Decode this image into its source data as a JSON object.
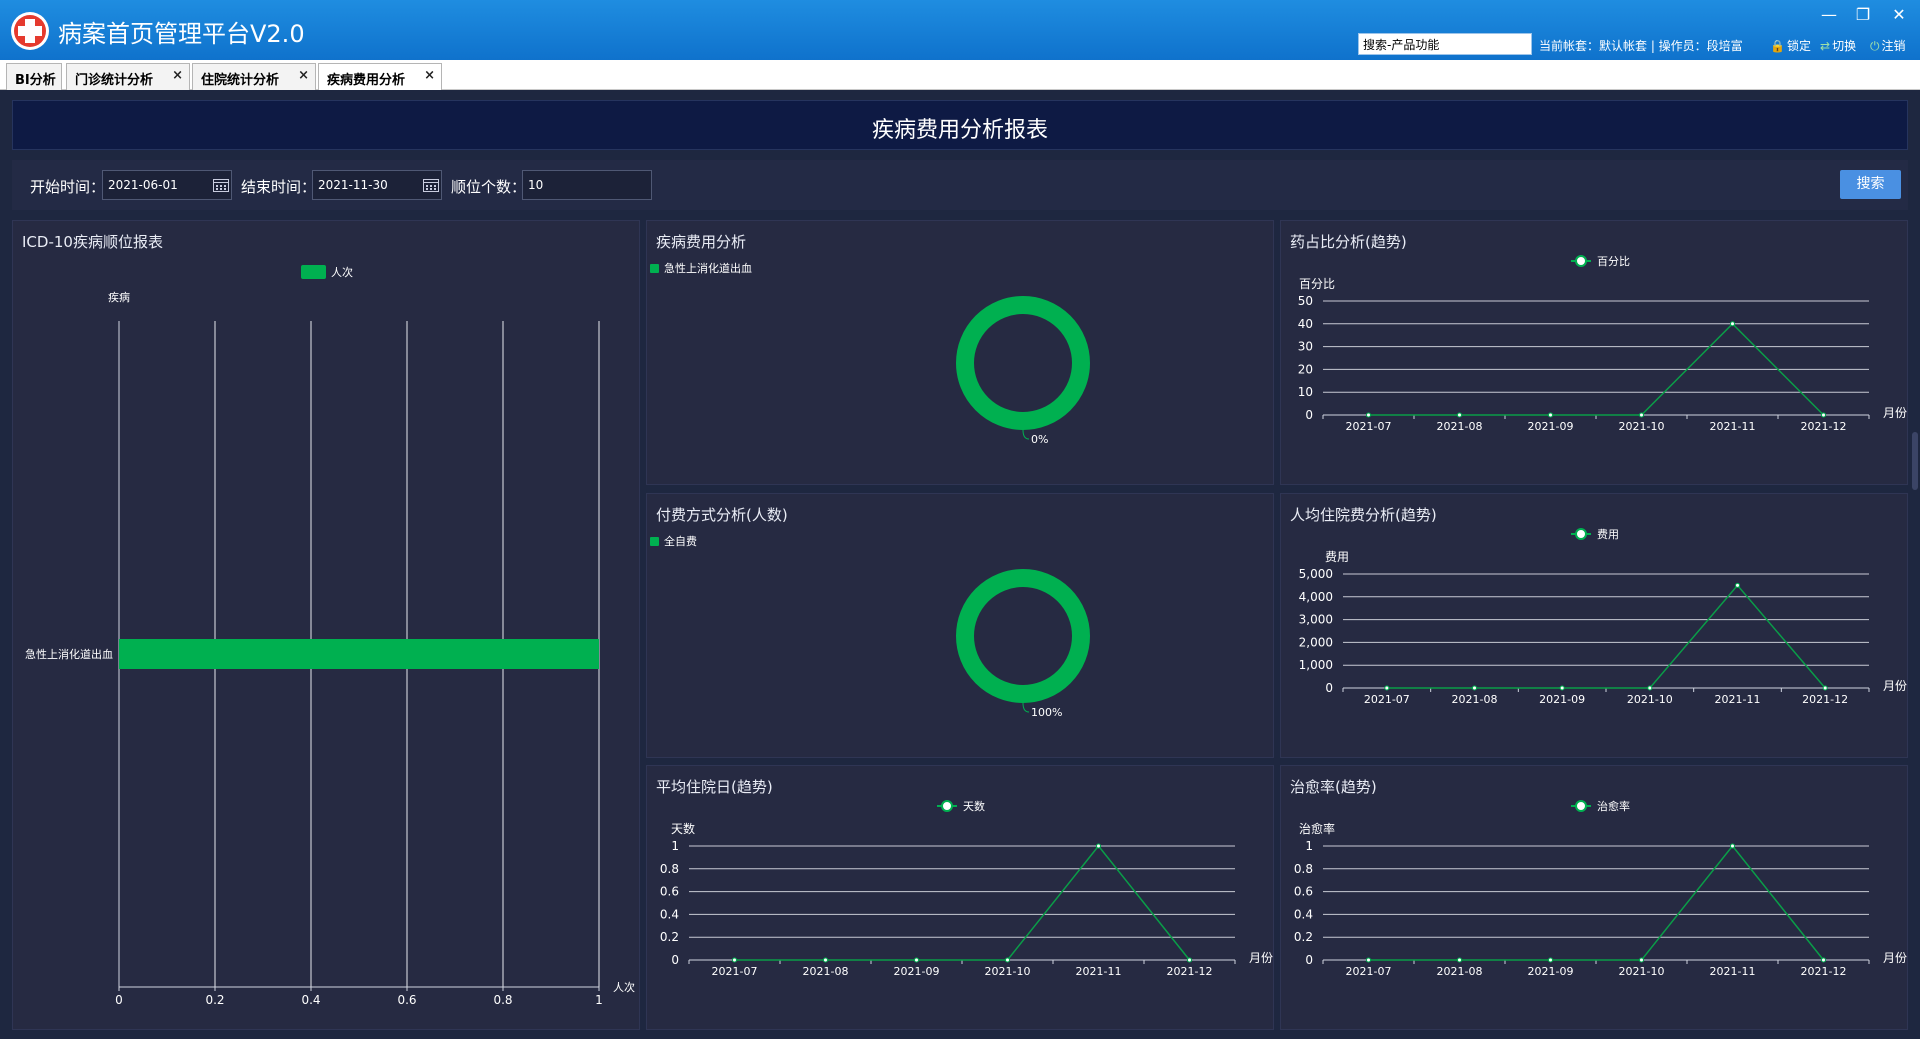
{
  "app": {
    "title": "病案首页管理平台V2.0",
    "search_value": "搜索-产品功能",
    "account_info": "当前帐套：默认帐套 | 操作员：段培富",
    "lock_label": "锁定",
    "switch_label": "切换",
    "logout_label": "注销"
  },
  "tabs": [
    {
      "label": "BI分析",
      "closable": false
    },
    {
      "label": "门诊统计分析",
      "closable": true
    },
    {
      "label": "住院统计分析",
      "closable": true
    },
    {
      "label": "疾病费用分析",
      "closable": true
    }
  ],
  "tab_close_glyph": "×",
  "report": {
    "title": "疾病费用分析报表"
  },
  "filters": {
    "start_label": "开始时间：",
    "start_value": "2021-06-01",
    "end_label": "结束时间：",
    "end_value": "2021-11-30",
    "rank_label": "顺位个数：",
    "rank_value": "10",
    "search_label": "搜索"
  },
  "colors": {
    "series": "#00b050",
    "line": "#0a9d48",
    "panel": "#262a42",
    "accent": "#4a90e2"
  },
  "panels": {
    "icd": {
      "title": "ICD-10疾病顺位报表"
    },
    "cost": {
      "title": "疾病费用分析"
    },
    "drug": {
      "title": "药占比分析(趋势)"
    },
    "pay": {
      "title": "付费方式分析(人数)"
    },
    "avgcost": {
      "title": "人均住院费分析(趋势)"
    },
    "avgdays": {
      "title": "平均住院日(趋势)"
    },
    "cure": {
      "title": "治愈率(趋势)"
    }
  },
  "chart_data": [
    {
      "key": "icd",
      "type": "bar",
      "orientation": "horizontal",
      "legend": "人次",
      "ylabel": "疾病",
      "xlabel": "人次",
      "categories": [
        "急性上消化道出血"
      ],
      "series": [
        {
          "name": "人次",
          "values": [
            1
          ]
        }
      ],
      "xticks": [
        "0",
        "0.2",
        "0.4",
        "0.6",
        "0.8",
        "1"
      ],
      "xlim": [
        0,
        1
      ],
      "grid": true
    },
    {
      "key": "cost",
      "type": "pie",
      "variant": "donut",
      "legend": "急性上消化道出血",
      "slices": [
        {
          "name": "急性上消化道出血",
          "value": 0,
          "label": "0%"
        }
      ]
    },
    {
      "key": "pay",
      "type": "pie",
      "variant": "donut",
      "legend": "全自费",
      "slices": [
        {
          "name": "全自费",
          "value": 100,
          "label": "100%"
        }
      ]
    },
    {
      "key": "drug",
      "type": "line",
      "legend": "百分比",
      "ylabel": "百分比",
      "xlabel": "月份",
      "x": [
        "2021-07",
        "2021-08",
        "2021-09",
        "2021-10",
        "2021-11",
        "2021-12"
      ],
      "series": [
        {
          "name": "百分比",
          "values": [
            0,
            0,
            0,
            0,
            40,
            0
          ]
        }
      ],
      "yticks": [
        "0",
        "10",
        "20",
        "30",
        "40",
        "50"
      ],
      "ylim": [
        0,
        50
      ],
      "grid": true
    },
    {
      "key": "avgcost",
      "type": "line",
      "legend": "费用",
      "ylabel": "费用",
      "xlabel": "月份",
      "x": [
        "2021-07",
        "2021-08",
        "2021-09",
        "2021-10",
        "2021-11",
        "2021-12"
      ],
      "series": [
        {
          "name": "费用",
          "values": [
            0,
            0,
            0,
            0,
            4500,
            0
          ]
        }
      ],
      "yticks": [
        "0",
        "1,000",
        "2,000",
        "3,000",
        "4,000",
        "5,000"
      ],
      "ylim": [
        0,
        5000
      ],
      "grid": true
    },
    {
      "key": "avgdays",
      "type": "line",
      "legend": "天数",
      "ylabel": "天数",
      "xlabel": "月份",
      "x": [
        "2021-07",
        "2021-08",
        "2021-09",
        "2021-10",
        "2021-11",
        "2021-12"
      ],
      "series": [
        {
          "name": "天数",
          "values": [
            0,
            0,
            0,
            0,
            1,
            0
          ]
        }
      ],
      "yticks": [
        "0",
        "0.2",
        "0.4",
        "0.6",
        "0.8",
        "1"
      ],
      "ylim": [
        0,
        1
      ],
      "grid": true
    },
    {
      "key": "cure",
      "type": "line",
      "legend": "治愈率",
      "ylabel": "治愈率",
      "xlabel": "月份",
      "x": [
        "2021-07",
        "2021-08",
        "2021-09",
        "2021-10",
        "2021-11",
        "2021-12"
      ],
      "series": [
        {
          "name": "治愈率",
          "values": [
            0,
            0,
            0,
            0,
            1,
            0
          ]
        }
      ],
      "yticks": [
        "0",
        "0.2",
        "0.4",
        "0.6",
        "0.8",
        "1"
      ],
      "ylim": [
        0,
        1
      ],
      "grid": true
    }
  ]
}
